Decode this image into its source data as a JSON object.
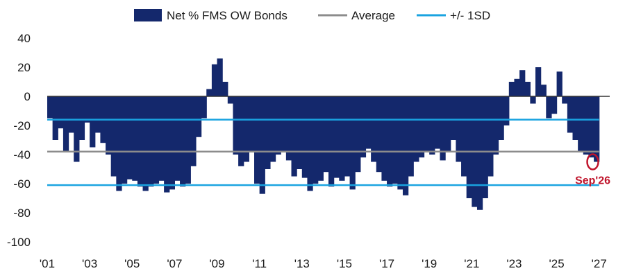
{
  "chart_data": {
    "type": "bar",
    "title": "",
    "xlabel": "",
    "ylabel": "",
    "ylim": [
      -100,
      40
    ],
    "y_ticks": [
      40,
      20,
      0,
      -20,
      -40,
      -60,
      -80,
      -100
    ],
    "y_tick_labels": [
      "40",
      "20",
      "0",
      "-20",
      "-40",
      "-60",
      "-80",
      "-100"
    ],
    "x_range": [
      2001,
      2027.5
    ],
    "x_ticks": [
      2001,
      2003,
      2005,
      2007,
      2009,
      2011,
      2013,
      2015,
      2017,
      2019,
      2021,
      2023,
      2025,
      2027
    ],
    "x_tick_labels": [
      "'01",
      "'03",
      "'05",
      "'07",
      "'09",
      "'11",
      "'13",
      "'15",
      "'17",
      "'19",
      "'21",
      "'23",
      "'25",
      "'27"
    ],
    "grid": false,
    "legend_position": "top",
    "legend": [
      {
        "label": "Net % FMS OW Bonds",
        "kind": "bar"
      },
      {
        "label": "Average",
        "kind": "line"
      },
      {
        "label": "+/- 1SD",
        "kind": "line"
      }
    ],
    "reference_lines": {
      "average": -38,
      "plus_1sd": -16,
      "minus_1sd": -61
    },
    "colors": {
      "bars": "#14286c",
      "average": "#8c8c8c",
      "sd": "#1aa3e0",
      "annotation": "#c0142b",
      "zero_line": "#333333"
    },
    "annotation": {
      "text": "Sep'26",
      "x": 2026.7,
      "y": -45
    },
    "series": [
      {
        "name": "Net % FMS OW Bonds",
        "x": [
          2001.0,
          2001.25,
          2001.5,
          2001.75,
          2002.0,
          2002.25,
          2002.5,
          2002.75,
          2003.0,
          2003.25,
          2003.5,
          2003.75,
          2004.0,
          2004.25,
          2004.5,
          2004.75,
          2005.0,
          2005.25,
          2005.5,
          2005.75,
          2006.0,
          2006.25,
          2006.5,
          2006.75,
          2007.0,
          2007.25,
          2007.5,
          2007.75,
          2008.0,
          2008.25,
          2008.5,
          2008.75,
          2009.0,
          2009.25,
          2009.5,
          2009.75,
          2010.0,
          2010.25,
          2010.5,
          2010.75,
          2011.0,
          2011.25,
          2011.5,
          2011.75,
          2012.0,
          2012.25,
          2012.5,
          2012.75,
          2013.0,
          2013.25,
          2013.5,
          2013.75,
          2014.0,
          2014.25,
          2014.5,
          2014.75,
          2015.0,
          2015.25,
          2015.5,
          2015.75,
          2016.0,
          2016.25,
          2016.5,
          2016.75,
          2017.0,
          2017.25,
          2017.5,
          2017.75,
          2018.0,
          2018.25,
          2018.5,
          2018.75,
          2019.0,
          2019.25,
          2019.5,
          2019.75,
          2020.0,
          2020.25,
          2020.5,
          2020.75,
          2021.0,
          2021.25,
          2021.5,
          2021.75,
          2022.0,
          2022.25,
          2022.5,
          2022.75,
          2023.0,
          2023.25,
          2023.5,
          2023.75,
          2024.0,
          2024.25,
          2024.5,
          2024.75,
          2025.0,
          2025.25,
          2025.5,
          2025.75,
          2026.0,
          2026.25,
          2026.5,
          2026.75
        ],
        "values": [
          -15,
          -30,
          -22,
          -38,
          -25,
          -45,
          -30,
          -18,
          -35,
          -25,
          -32,
          -40,
          -55,
          -65,
          -60,
          -57,
          -58,
          -62,
          -65,
          -62,
          -60,
          -58,
          -66,
          -64,
          -58,
          -62,
          -60,
          -48,
          -28,
          -15,
          5,
          22,
          26,
          10,
          -5,
          -40,
          -48,
          -45,
          -38,
          -60,
          -67,
          -50,
          -45,
          -40,
          -38,
          -44,
          -55,
          -50,
          -56,
          -65,
          -60,
          -58,
          -52,
          -62,
          -56,
          -58,
          -55,
          -64,
          -52,
          -42,
          -36,
          -45,
          -52,
          -58,
          -62,
          -60,
          -64,
          -68,
          -55,
          -45,
          -42,
          -38,
          -40,
          -36,
          -44,
          -38,
          -30,
          -45,
          -55,
          -70,
          -76,
          -78,
          -70,
          -55,
          -40,
          -30,
          -20,
          10,
          12,
          18,
          10,
          -5,
          20,
          8,
          -15,
          -12,
          17,
          -5,
          -25,
          -30,
          -38,
          -40,
          -42,
          -45
        ]
      }
    ]
  }
}
